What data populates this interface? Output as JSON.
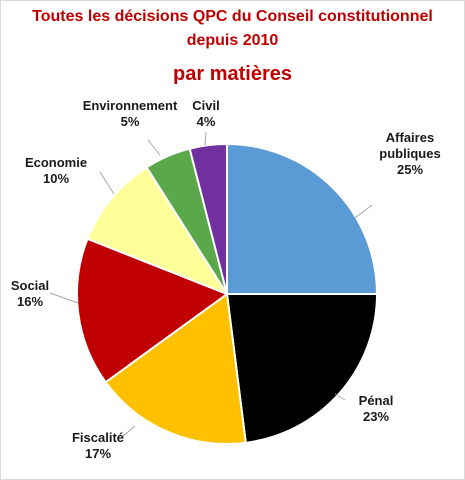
{
  "chart_data": {
    "type": "pie",
    "title": "Toutes les décisions QPC du Conseil constitutionnel",
    "title_line2": "depuis 2010",
    "subtitle": "par matières",
    "slices": [
      {
        "label_lines": [
          "Affaires",
          "publiques"
        ],
        "value": 25,
        "pct_label": "25%",
        "color": "#5b9bd5"
      },
      {
        "label_lines": [
          "Pénal"
        ],
        "value": 23,
        "pct_label": "23%",
        "color": "#000000"
      },
      {
        "label_lines": [
          "Fiscalité"
        ],
        "value": 17,
        "pct_label": "17%",
        "color": "#ffc000"
      },
      {
        "label_lines": [
          "Social"
        ],
        "value": 16,
        "pct_label": "16%",
        "color": "#c00000"
      },
      {
        "label_lines": [
          "Economie"
        ],
        "value": 10,
        "pct_label": "10%",
        "color": "#ffff99"
      },
      {
        "label_lines": [
          "Environnement"
        ],
        "value": 5,
        "pct_label": "5%",
        "color": "#5aa84a"
      },
      {
        "label_lines": [
          "Civil"
        ],
        "value": 4,
        "pct_label": "4%",
        "color": "#7030a0"
      }
    ],
    "start_angle": "12 o'clock",
    "direction": "clockwise",
    "legend": "none",
    "labels": "outside with leader lines"
  }
}
